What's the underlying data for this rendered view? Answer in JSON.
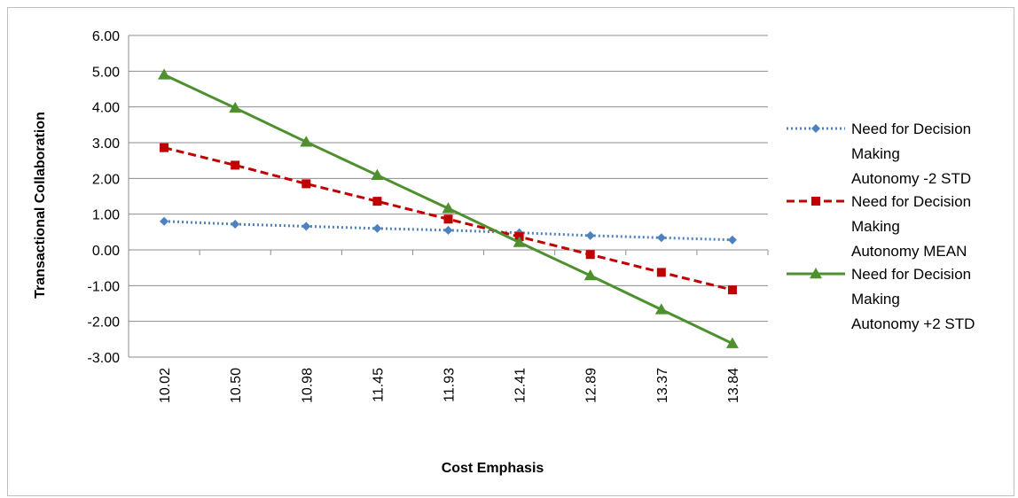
{
  "chart_data": {
    "type": "line",
    "title": "",
    "xlabel": "Cost Emphasis",
    "ylabel": "Transactional Collaboration",
    "ylim": [
      -3,
      6
    ],
    "yticks": [
      "6.00",
      "5.00",
      "4.00",
      "3.00",
      "2.00",
      "1.00",
      "0.00",
      "-1.00",
      "-2.00",
      "-3.00"
    ],
    "categories": [
      "10.02",
      "10.50",
      "10.98",
      "11.45",
      "11.93",
      "12.41",
      "12.89",
      "13.37",
      "13.84"
    ],
    "grid": "horizontal",
    "legend_position": "right",
    "series": [
      {
        "name": "Need for Decision Making Autonomy -2 STD",
        "legend_lines": [
          "Need for Decision",
          "Making",
          "Autonomy -2 STD"
        ],
        "color": "#4f81bd",
        "line_style": "dotted",
        "marker": "diamond",
        "values": [
          0.8,
          0.72,
          0.66,
          0.6,
          0.55,
          0.48,
          0.4,
          0.34,
          0.28
        ]
      },
      {
        "name": "Need for Decision Making Autonomy MEAN",
        "legend_lines": [
          "Need for Decision",
          "Making",
          "Autonomy MEAN"
        ],
        "color": "#c00000",
        "line_style": "dashed",
        "marker": "square",
        "values": [
          2.86,
          2.37,
          1.85,
          1.36,
          0.86,
          0.37,
          -0.13,
          -0.63,
          -1.12
        ]
      },
      {
        "name": "Need for Decision Making Autonomy +2 STD",
        "legend_lines": [
          "Need for Decision",
          "Making",
          "Autonomy +2 STD"
        ],
        "color": "#4e8f2f",
        "line_style": "solid",
        "marker": "triangle",
        "values": [
          4.9,
          3.97,
          3.02,
          2.09,
          1.16,
          0.21,
          -0.72,
          -1.67,
          -2.62
        ]
      }
    ]
  }
}
